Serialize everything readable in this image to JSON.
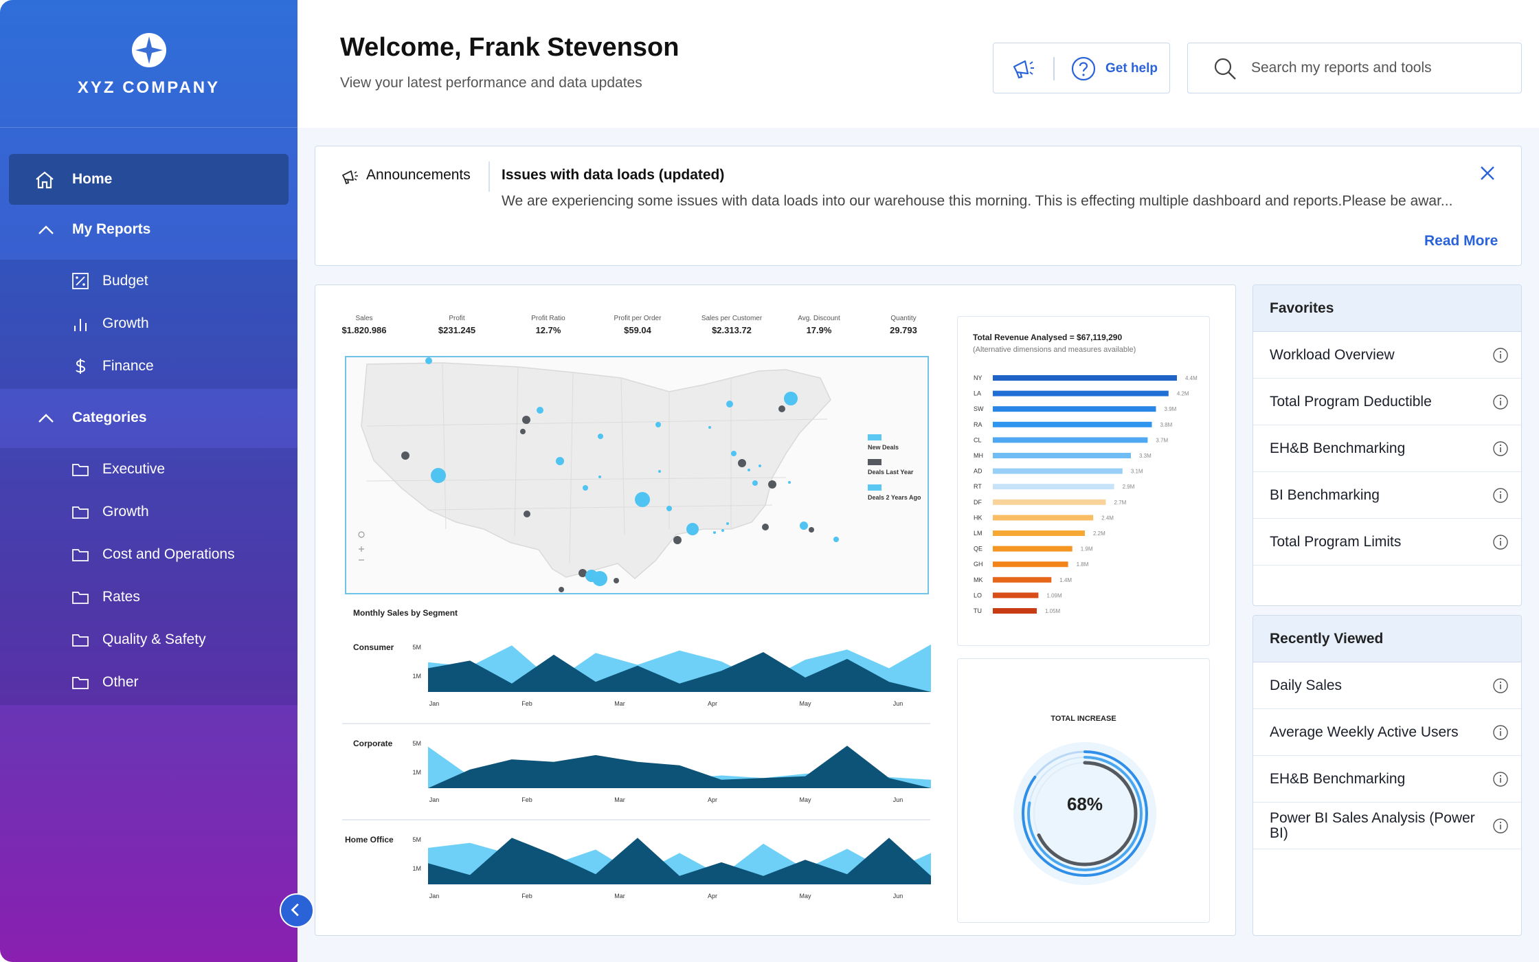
{
  "brand": {
    "name": "XYZ COMPANY"
  },
  "nav": {
    "home": "Home",
    "my_reports": {
      "label": "My Reports",
      "items": [
        {
          "label": "Budget",
          "icon": "percent-square-icon"
        },
        {
          "label": "Growth",
          "icon": "bar-chart-icon"
        },
        {
          "label": "Finance",
          "icon": "dollar-icon"
        }
      ]
    },
    "categories": {
      "label": "Categories",
      "items": [
        {
          "label": "Executive",
          "icon": "folder-icon"
        },
        {
          "label": "Growth",
          "icon": "folder-icon"
        },
        {
          "label": "Cost and Operations",
          "icon": "folder-icon"
        },
        {
          "label": "Rates",
          "icon": "folder-icon"
        },
        {
          "label": "Quality & Safety",
          "icon": "folder-icon"
        },
        {
          "label": "Other",
          "icon": "folder-icon"
        }
      ]
    }
  },
  "header": {
    "welcome": "Welcome, Frank Stevenson",
    "subtitle": "View your latest performance and data updates",
    "help_label": "Get help",
    "search_placeholder": "Search my reports and tools"
  },
  "announcement": {
    "label": "Announcements",
    "title": "Issues with data loads (updated)",
    "body": "We are experiencing some issues with data loads into our warehouse this morning. This is effecting multiple dashboard and reports.Please be awar...",
    "read_more": "Read More"
  },
  "kpis": [
    {
      "label": "Sales",
      "value": "$1.820.986"
    },
    {
      "label": "Profit",
      "value": "$231.245"
    },
    {
      "label": "Profit Ratio",
      "value": "12.7%"
    },
    {
      "label": "Profit per Order",
      "value": "$59.04"
    },
    {
      "label": "Sales per Customer",
      "value": "$2.313.72"
    },
    {
      "label": "Avg. Discount",
      "value": "17.9%"
    },
    {
      "label": "Quantity",
      "value": "29.793"
    }
  ],
  "map_legend": [
    {
      "label": "New Deals",
      "color": "#5bc8f3"
    },
    {
      "label": "Deals Last Year",
      "color": "#555a60"
    },
    {
      "label": "Deals 2 Years Ago",
      "color": "#5bc8f3"
    }
  ],
  "segments": {
    "title": "Monthly Sales by Segment",
    "months": [
      "Jan",
      "Feb",
      "Mar",
      "Apr",
      "May",
      "Jun"
    ],
    "y_ticks": [
      "5M",
      "1M"
    ],
    "items": [
      {
        "name": "Consumer"
      },
      {
        "name": "Corporate"
      },
      {
        "name": "Home Office"
      }
    ]
  },
  "revenue": {
    "title": "Total Revenue Analysed = $67,119,290",
    "subtitle": "(Alternative dimensions and measures available)"
  },
  "increase": {
    "title": "TOTAL INCREASE",
    "value": "68%"
  },
  "chart_data": [
    {
      "type": "bar",
      "title": "Total Revenue Analysed = $67,119,290",
      "orientation": "horizontal",
      "categories": [
        "NY",
        "LA",
        "SW",
        "RA",
        "CL",
        "MH",
        "AD",
        "RT",
        "DF",
        "HK",
        "LM",
        "QE",
        "GH",
        "MK",
        "LO",
        "TU"
      ],
      "labels": [
        "4.4M",
        "4.2M",
        "3.9M",
        "3.8M",
        "3.7M",
        "3.3M",
        "3.1M",
        "2.9M",
        "2.7M",
        "2.4M",
        "2.2M",
        "1.9M",
        "1.8M",
        "1.4M",
        "1.09M",
        "1.05M"
      ],
      "values": [
        4.4,
        4.2,
        3.9,
        3.8,
        3.7,
        3.3,
        3.1,
        2.9,
        2.7,
        2.4,
        2.2,
        1.9,
        1.8,
        1.4,
        1.09,
        1.05
      ],
      "colors": [
        "#1f63c6",
        "#1f6fd4",
        "#2a86e6",
        "#2f95ee",
        "#4fa9f2",
        "#70bcf5",
        "#98cff7",
        "#c6e3fa",
        "#fad39a",
        "#f9be63",
        "#f7a733",
        "#f59522",
        "#f2841a",
        "#e6671a",
        "#d84d18",
        "#c83c14"
      ]
    },
    {
      "type": "area",
      "title": "Monthly Sales by Segment",
      "x": [
        "Jan",
        "Feb",
        "Mar",
        "Apr",
        "May",
        "Jun"
      ],
      "series": [
        {
          "name": "Consumer",
          "light": [
            3.5,
            3.0,
            5.5,
            1.2,
            4.6,
            3.2,
            4.9,
            3.6,
            1.2,
            3.8,
            5.0,
            2.8,
            5.6
          ],
          "dark": [
            2.8,
            3.7,
            1.0,
            4.4,
            1.2,
            3.1,
            1.0,
            2.5,
            4.7,
            1.7,
            3.9,
            1.2,
            0.0
          ]
        },
        {
          "name": "Corporate",
          "light": [
            4.9,
            1.4,
            2.1,
            1.6,
            2.4,
            1.7,
            1.1,
            1.5,
            1.2,
            1.7,
            1.9,
            1.3,
            1.0
          ],
          "dark": [
            0.0,
            2.2,
            3.4,
            3.1,
            3.9,
            3.1,
            2.7,
            1.0,
            1.2,
            1.4,
            5.0,
            1.2,
            0.0
          ]
        },
        {
          "name": "Home Office",
          "light": [
            4.3,
            4.9,
            3.5,
            2.4,
            4.1,
            1.1,
            3.7,
            1.0,
            4.8,
            1.8,
            4.2,
            1.5,
            3.7
          ],
          "dark": [
            2.5,
            1.1,
            5.5,
            3.5,
            1.2,
            5.5,
            1.0,
            2.6,
            1.0,
            2.9,
            1.2,
            5.5,
            1.0
          ]
        }
      ]
    },
    {
      "type": "pie",
      "title": "TOTAL INCREASE",
      "values": [
        68
      ]
    }
  ]
}
